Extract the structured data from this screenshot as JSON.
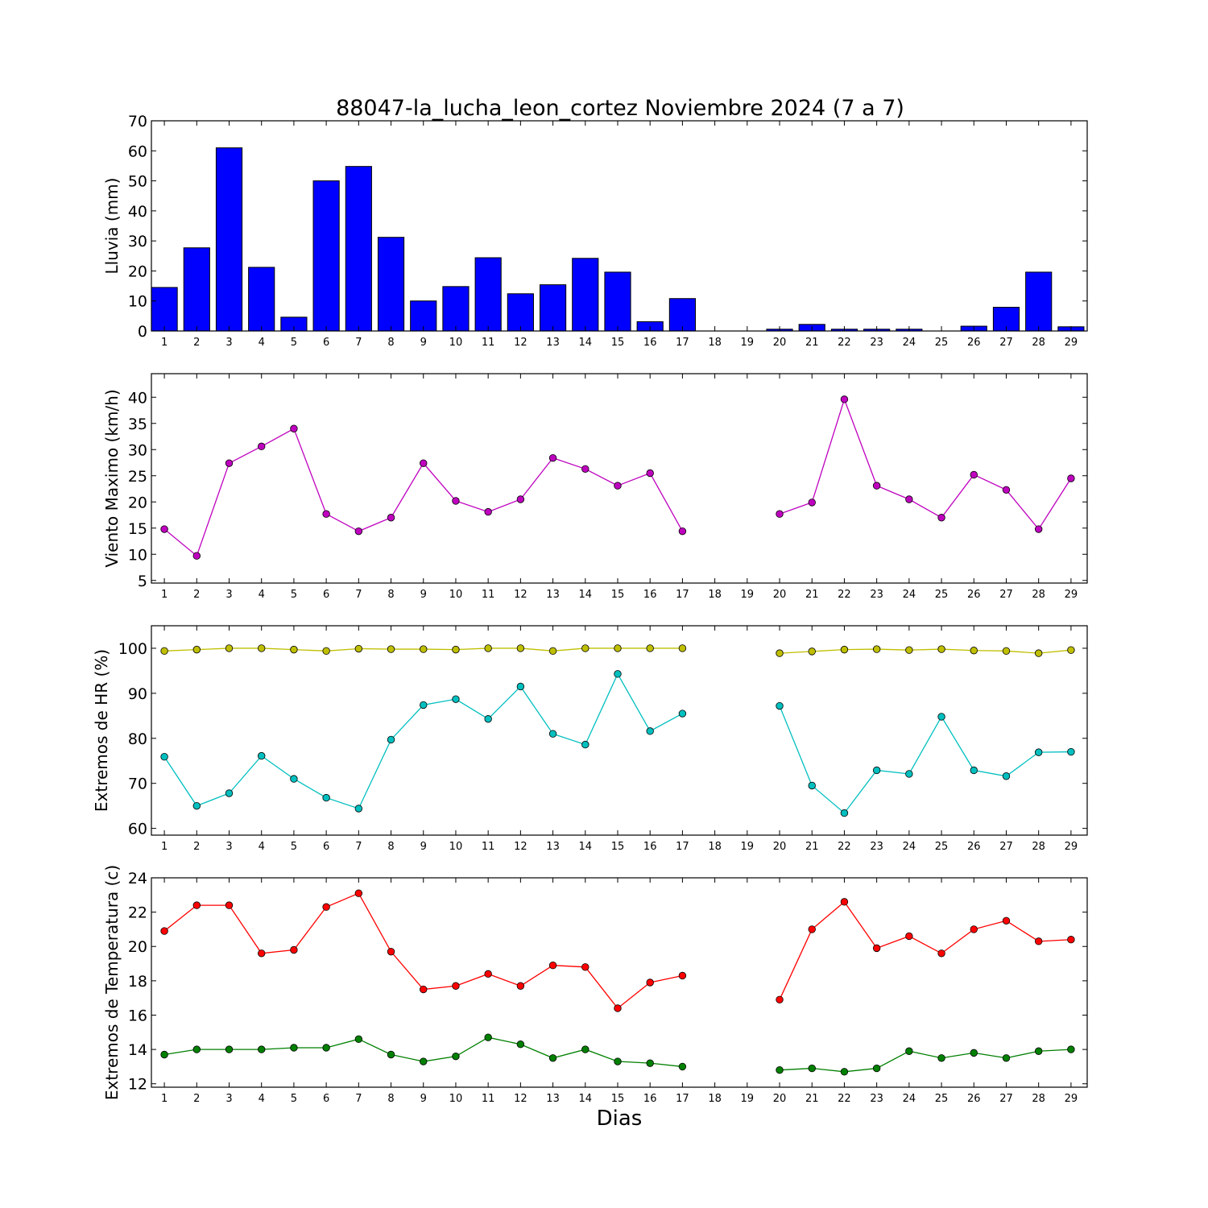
{
  "title": "88047-la_lucha_leon_cortez Noviembre 2024  (7 a 7)",
  "xlabel": "Dias",
  "chart_data": [
    {
      "type": "bar",
      "ylabel": "Lluvia (mm)",
      "ylim": [
        0,
        70
      ],
      "yticks": [
        0,
        10,
        20,
        30,
        40,
        50,
        60,
        70
      ],
      "x": [
        1,
        2,
        3,
        4,
        5,
        6,
        7,
        8,
        9,
        10,
        11,
        12,
        13,
        14,
        15,
        16,
        17,
        18,
        19,
        20,
        21,
        22,
        23,
        24,
        25,
        26,
        27,
        28,
        29
      ],
      "series": [
        {
          "color": "#0000ff",
          "values": [
            14.5,
            27.7,
            61,
            21.2,
            4.6,
            50,
            54.8,
            31.2,
            10,
            14.8,
            24.4,
            12.4,
            15.4,
            24.2,
            19.6,
            3.1,
            10.8,
            0,
            0,
            0.6,
            2.2,
            0.6,
            0.6,
            0.6,
            0,
            1.6,
            7.9,
            19.6,
            1.4
          ]
        }
      ]
    },
    {
      "type": "line",
      "ylabel": "Viento Maximo (km/h)",
      "ylim": [
        4.5,
        44.5
      ],
      "yticks": [
        5,
        10,
        15,
        20,
        25,
        30,
        35,
        40
      ],
      "x": [
        1,
        2,
        3,
        4,
        5,
        6,
        7,
        8,
        9,
        10,
        11,
        12,
        13,
        14,
        15,
        16,
        17,
        18,
        19,
        20,
        21,
        22,
        23,
        24,
        25,
        26,
        27,
        28,
        29
      ],
      "series": [
        {
          "color": "#bf00bf",
          "values": [
            14.8,
            9.7,
            27.4,
            30.6,
            34,
            17.7,
            14.4,
            17,
            27.4,
            20.2,
            18.1,
            20.5,
            28.4,
            26.3,
            23.1,
            25.5,
            14.4,
            null,
            null,
            17.7,
            19.9,
            39.6,
            23.1,
            20.5,
            17,
            25.2,
            22.3,
            14.8,
            24.5
          ]
        }
      ]
    },
    {
      "type": "line",
      "ylabel": "Extremos de HR (%)",
      "ylim": [
        58.5,
        105
      ],
      "yticks": [
        60,
        70,
        80,
        90,
        100
      ],
      "x": [
        1,
        2,
        3,
        4,
        5,
        6,
        7,
        8,
        9,
        10,
        11,
        12,
        13,
        14,
        15,
        16,
        17,
        18,
        19,
        20,
        21,
        22,
        23,
        24,
        25,
        26,
        27,
        28,
        29
      ],
      "series": [
        {
          "color": "#bfbf00",
          "values": [
            99.4,
            99.7,
            100,
            100,
            99.7,
            99.4,
            99.9,
            99.8,
            99.8,
            99.7,
            100,
            100,
            99.4,
            100,
            100,
            100,
            100,
            null,
            null,
            98.9,
            99.3,
            99.7,
            99.8,
            99.6,
            99.8,
            99.5,
            99.4,
            98.9,
            99.6
          ]
        },
        {
          "color": "#00bfbf",
          "values": [
            75.9,
            65,
            67.8,
            76.1,
            71,
            66.8,
            64.4,
            79.7,
            87.4,
            88.7,
            84.3,
            91.5,
            81,
            78.6,
            94.3,
            81.6,
            85.5,
            null,
            null,
            87.2,
            69.5,
            63.4,
            72.9,
            72.1,
            84.8,
            72.9,
            71.6,
            76.9,
            77
          ]
        }
      ]
    },
    {
      "type": "line",
      "ylabel": "Extremos de Temperatura (c)",
      "ylim": [
        11.8,
        24
      ],
      "yticks": [
        12,
        14,
        16,
        18,
        20,
        22,
        24
      ],
      "x": [
        1,
        2,
        3,
        4,
        5,
        6,
        7,
        8,
        9,
        10,
        11,
        12,
        13,
        14,
        15,
        16,
        17,
        18,
        19,
        20,
        21,
        22,
        23,
        24,
        25,
        26,
        27,
        28,
        29
      ],
      "series": [
        {
          "color": "#ff0000",
          "values": [
            20.9,
            22.4,
            22.4,
            19.6,
            19.8,
            22.3,
            23.1,
            19.7,
            17.5,
            17.7,
            18.4,
            17.7,
            18.9,
            18.8,
            16.4,
            17.9,
            18.3,
            null,
            null,
            16.9,
            21,
            22.6,
            19.9,
            20.6,
            19.6,
            21,
            21.5,
            20.3,
            20.4
          ]
        },
        {
          "color": "#008000",
          "values": [
            13.7,
            14,
            14,
            14,
            14.1,
            14.1,
            14.6,
            13.7,
            13.3,
            13.6,
            14.7,
            14.3,
            13.5,
            14,
            13.3,
            13.2,
            13,
            null,
            null,
            12.8,
            12.9,
            12.7,
            12.9,
            13.9,
            13.5,
            13.8,
            13.5,
            13.9,
            14
          ]
        }
      ]
    }
  ]
}
